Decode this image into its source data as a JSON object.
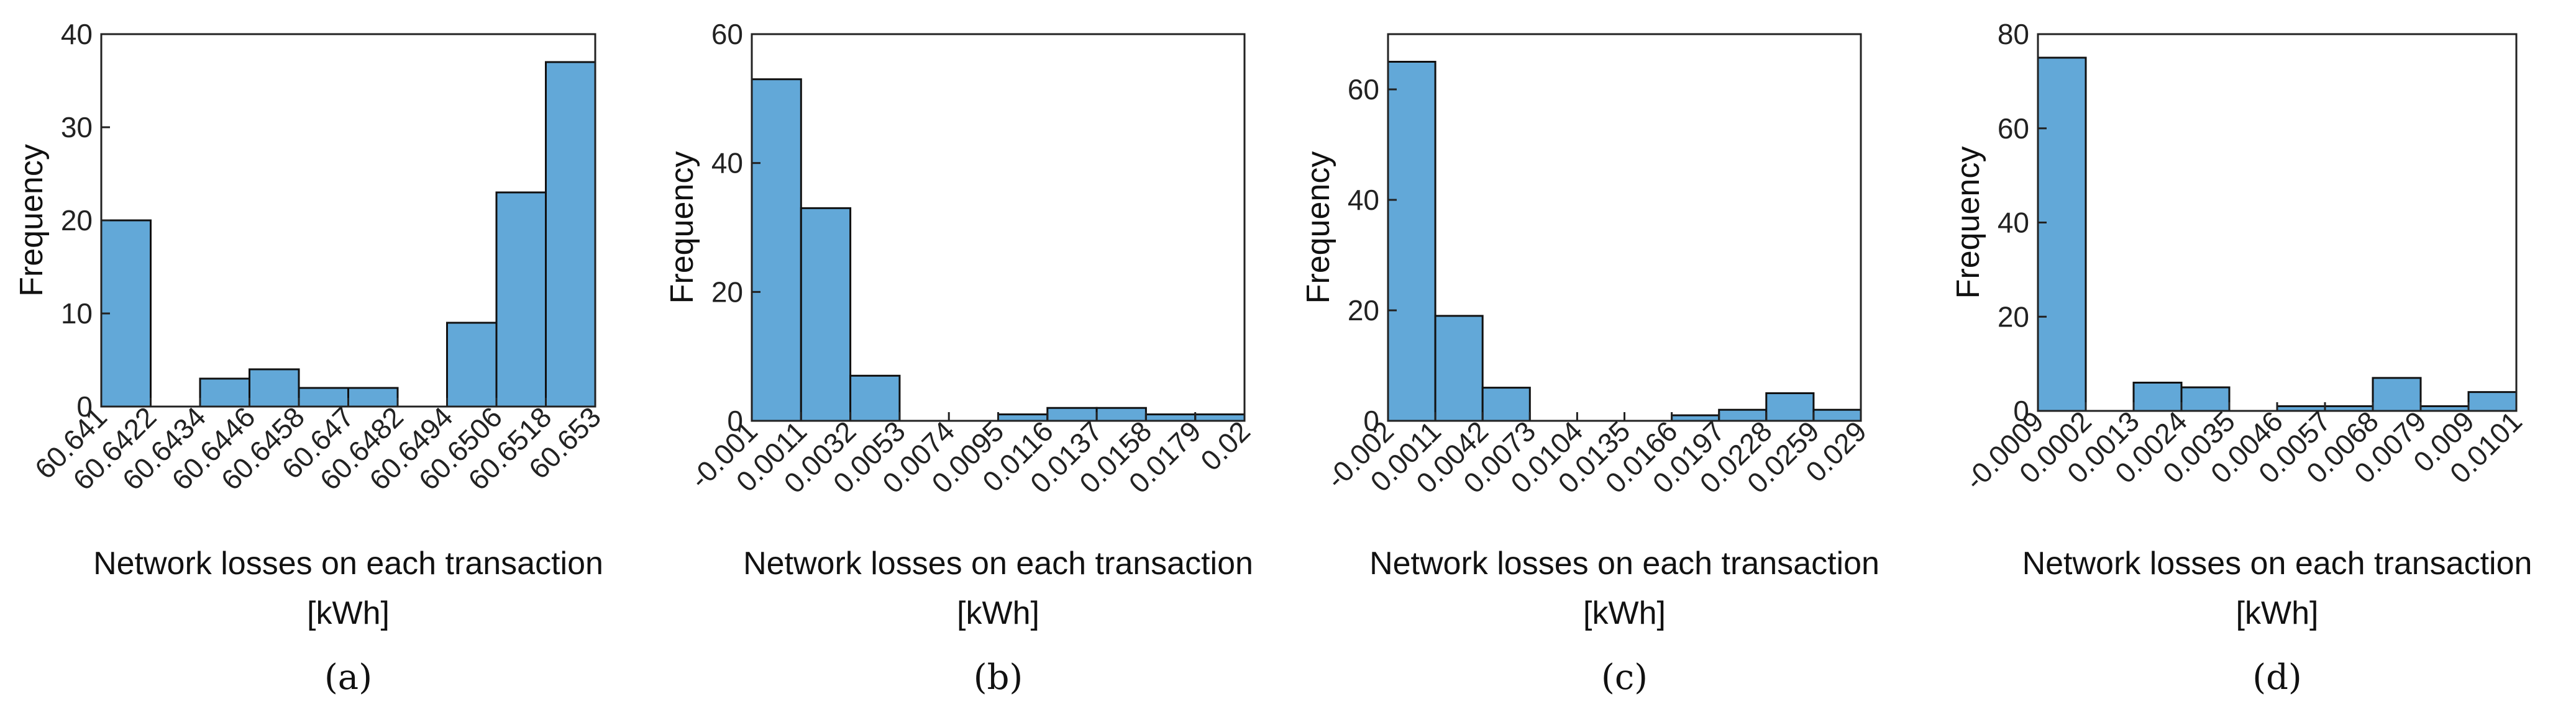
{
  "colors": {
    "bar_fill": "#62a8d8",
    "bar_stroke": "#111111",
    "axis": "#222222"
  },
  "chart_data": [
    {
      "type": "bar",
      "panel_label": "(a)",
      "xlabel": "Network losses on each transaction",
      "xlabel_unit": "[kWh]",
      "ylabel": "Frequency",
      "ylim": [
        0,
        40
      ],
      "yticks": [
        "0",
        "10",
        "20",
        "30",
        "40"
      ],
      "xticks": [
        "60.641",
        "60.6422",
        "60.6434",
        "60.6446",
        "60.6458",
        "60.647",
        "60.6482",
        "60.6494",
        "60.6506",
        "60.6518",
        "60.653"
      ],
      "values": [
        20,
        0,
        3,
        4,
        2,
        2,
        0,
        9,
        23,
        37
      ]
    },
    {
      "type": "bar",
      "panel_label": "(b)",
      "xlabel": "Network losses on each transaction",
      "xlabel_unit": "[kWh]",
      "ylabel": "Frequency",
      "ylim": [
        0,
        60
      ],
      "yticks": [
        "0",
        "20",
        "40",
        "60"
      ],
      "xticks": [
        "-0.001",
        "0.0011",
        "0.0032",
        "0.0053",
        "0.0074",
        "0.0095",
        "0.0116",
        "0.0137",
        "0.0158",
        "0.0179",
        "0.02"
      ],
      "values": [
        53,
        33,
        7,
        0,
        0,
        1,
        2,
        2,
        1,
        1
      ]
    },
    {
      "type": "bar",
      "panel_label": "(c)",
      "xlabel": "Network losses on each transaction",
      "xlabel_unit": "[kWh]",
      "ylabel": "Frequency",
      "ylim": [
        0,
        70
      ],
      "yticks": [
        "0",
        "20",
        "40",
        "60"
      ],
      "xticks": [
        "-0.002",
        "0.0011",
        "0.0042",
        "0.0073",
        "0.0104",
        "0.0135",
        "0.0166",
        "0.0197",
        "0.0228",
        "0.0259",
        "0.029"
      ],
      "values": [
        65,
        19,
        6,
        0,
        0,
        0,
        1,
        2,
        5,
        2
      ]
    },
    {
      "type": "bar",
      "panel_label": "(d)",
      "xlabel": "Network losses on each transaction",
      "xlabel_unit": "[kWh]",
      "ylabel": "Frequency",
      "ylim": [
        0,
        80
      ],
      "yticks": [
        "0",
        "20",
        "40",
        "60",
        "80"
      ],
      "xticks": [
        "-0.0009",
        "0.0002",
        "0.0013",
        "0.0024",
        "0.0035",
        "0.0046",
        "0.0057",
        "0.0068",
        "0.0079",
        "0.009",
        "0.0101"
      ],
      "values": [
        75,
        0,
        6,
        5,
        0,
        1,
        1,
        7,
        1,
        4
      ]
    }
  ]
}
